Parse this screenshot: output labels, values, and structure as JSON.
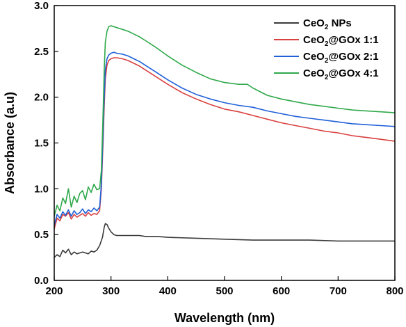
{
  "chart_data": {
    "type": "line",
    "xlabel": "Wavelength (nm)",
    "ylabel": "Absorbance (a.u)",
    "xlim": [
      200,
      800
    ],
    "ylim": [
      0.0,
      3.0
    ],
    "x_ticks": [
      200,
      300,
      400,
      500,
      600,
      700,
      800
    ],
    "y_ticks": [
      0.0,
      0.5,
      1.0,
      1.5,
      2.0,
      2.5,
      3.0
    ],
    "x_tick_labels": [
      "200",
      "300",
      "400",
      "500",
      "600",
      "700",
      "800"
    ],
    "y_tick_labels": [
      "0.0",
      "0.5",
      "1.0",
      "1.5",
      "2.0",
      "2.5",
      "3.0"
    ],
    "grid": false,
    "legend_position": "top-right",
    "series": [
      {
        "name": "CeO2 NPs",
        "legend_main": "CeO",
        "legend_sub": "2",
        "legend_rest": " NPs",
        "color": "#3a3a3a",
        "x": [
          200,
          205,
          210,
          215,
          220,
          225,
          230,
          235,
          240,
          245,
          250,
          255,
          260,
          265,
          270,
          275,
          280,
          285,
          288,
          290,
          293,
          296,
          300,
          305,
          310,
          320,
          330,
          340,
          350,
          360,
          380,
          400,
          450,
          500,
          550,
          600,
          650,
          700,
          750,
          800
        ],
        "y": [
          0.25,
          0.28,
          0.26,
          0.33,
          0.3,
          0.34,
          0.28,
          0.31,
          0.29,
          0.3,
          0.31,
          0.3,
          0.29,
          0.32,
          0.31,
          0.33,
          0.38,
          0.47,
          0.58,
          0.62,
          0.61,
          0.57,
          0.53,
          0.5,
          0.49,
          0.49,
          0.49,
          0.49,
          0.49,
          0.48,
          0.48,
          0.47,
          0.46,
          0.45,
          0.44,
          0.44,
          0.44,
          0.43,
          0.43,
          0.43
        ]
      },
      {
        "name": "CeO2@GOx 1:1",
        "legend_main": "CeO",
        "legend_sub": "2",
        "legend_rest": "@GOx 1:1",
        "color": "#d94040",
        "x": [
          200,
          205,
          210,
          215,
          220,
          225,
          230,
          235,
          240,
          245,
          250,
          255,
          260,
          265,
          270,
          275,
          280,
          283,
          286,
          288,
          290,
          293,
          296,
          300,
          305,
          310,
          320,
          330,
          340,
          350,
          360,
          380,
          400,
          425,
          450,
          475,
          500,
          525,
          550,
          575,
          600,
          625,
          650,
          675,
          700,
          725,
          750,
          775,
          800
        ],
        "y": [
          0.56,
          0.68,
          0.65,
          0.72,
          0.7,
          0.74,
          0.67,
          0.72,
          0.69,
          0.71,
          0.73,
          0.7,
          0.74,
          0.71,
          0.73,
          0.72,
          0.76,
          1.0,
          1.5,
          1.9,
          2.2,
          2.35,
          2.4,
          2.42,
          2.43,
          2.43,
          2.42,
          2.4,
          2.37,
          2.34,
          2.3,
          2.22,
          2.14,
          2.05,
          1.98,
          1.92,
          1.87,
          1.84,
          1.8,
          1.76,
          1.72,
          1.69,
          1.66,
          1.63,
          1.61,
          1.58,
          1.56,
          1.54,
          1.52
        ]
      },
      {
        "name": "CeO2@GOx 2:1",
        "legend_main": "CeO",
        "legend_sub": "2",
        "legend_rest": "@GOx 2:1",
        "color": "#2060d8",
        "x": [
          200,
          205,
          210,
          215,
          220,
          225,
          230,
          235,
          240,
          245,
          250,
          255,
          260,
          265,
          270,
          275,
          280,
          283,
          286,
          288,
          290,
          293,
          296,
          300,
          305,
          310,
          320,
          330,
          340,
          350,
          360,
          380,
          400,
          425,
          450,
          475,
          500,
          525,
          550,
          575,
          600,
          625,
          650,
          675,
          700,
          725,
          750,
          775,
          800
        ],
        "y": [
          0.6,
          0.72,
          0.68,
          0.75,
          0.71,
          0.77,
          0.7,
          0.76,
          0.72,
          0.74,
          0.78,
          0.73,
          0.77,
          0.75,
          0.79,
          0.76,
          0.8,
          1.05,
          1.6,
          2.0,
          2.3,
          2.42,
          2.46,
          2.48,
          2.49,
          2.48,
          2.47,
          2.45,
          2.42,
          2.39,
          2.35,
          2.27,
          2.19,
          2.1,
          2.03,
          1.98,
          1.94,
          1.91,
          1.89,
          1.85,
          1.82,
          1.79,
          1.77,
          1.75,
          1.73,
          1.71,
          1.7,
          1.69,
          1.68
        ]
      },
      {
        "name": "CeO2@GOx 4:1",
        "legend_main": "CeO",
        "legend_sub": "2",
        "legend_rest": "@GOx 4:1",
        "color": "#2ea84a",
        "x": [
          200,
          205,
          210,
          215,
          220,
          225,
          230,
          235,
          240,
          245,
          250,
          255,
          260,
          265,
          270,
          275,
          280,
          283,
          286,
          288,
          290,
          293,
          296,
          300,
          305,
          310,
          320,
          330,
          340,
          350,
          360,
          380,
          400,
          425,
          450,
          475,
          500,
          525,
          540,
          550,
          575,
          600,
          625,
          650,
          675,
          700,
          725,
          750,
          775,
          800
        ],
        "y": [
          0.7,
          0.82,
          0.76,
          0.9,
          0.84,
          1.0,
          0.8,
          0.92,
          0.85,
          0.95,
          0.98,
          0.88,
          1.02,
          0.96,
          1.05,
          0.99,
          1.0,
          1.2,
          1.8,
          2.3,
          2.6,
          2.72,
          2.77,
          2.78,
          2.77,
          2.76,
          2.74,
          2.72,
          2.69,
          2.66,
          2.62,
          2.54,
          2.45,
          2.35,
          2.27,
          2.2,
          2.16,
          2.14,
          2.14,
          2.1,
          2.02,
          1.98,
          1.95,
          1.92,
          1.9,
          1.88,
          1.86,
          1.85,
          1.84,
          1.83
        ]
      }
    ]
  }
}
